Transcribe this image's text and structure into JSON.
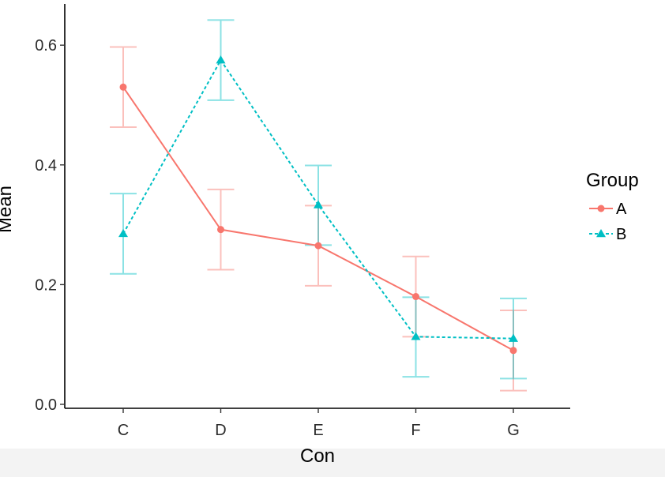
{
  "chart_data": {
    "type": "line",
    "title": "",
    "xlabel": "Con",
    "ylabel": "Mean",
    "categories": [
      "C",
      "D",
      "E",
      "F",
      "G"
    ],
    "ylim": [
      0,
      0.66
    ],
    "yticks": [
      0.0,
      0.2,
      0.4,
      0.6
    ],
    "ytick_labels": [
      "0.0",
      "0.2",
      "0.4",
      "0.6"
    ],
    "grid": false,
    "legend": {
      "title": "Group",
      "placement": "right"
    },
    "series": [
      {
        "name": "A",
        "color": "#F8766D",
        "marker": "circle",
        "linestyle": "solid",
        "values": [
          0.53,
          0.292,
          0.265,
          0.18,
          0.09
        ],
        "lower": [
          0.463,
          0.225,
          0.198,
          0.113,
          0.023
        ],
        "upper": [
          0.597,
          0.359,
          0.332,
          0.247,
          0.157
        ]
      },
      {
        "name": "B",
        "color": "#00BFC4",
        "marker": "triangle",
        "linestyle": "dashed",
        "values": [
          0.285,
          0.575,
          0.333,
          0.113,
          0.11
        ],
        "lower": [
          0.218,
          0.508,
          0.266,
          0.046,
          0.043
        ],
        "upper": [
          0.352,
          0.642,
          0.399,
          0.179,
          0.177
        ]
      }
    ]
  }
}
